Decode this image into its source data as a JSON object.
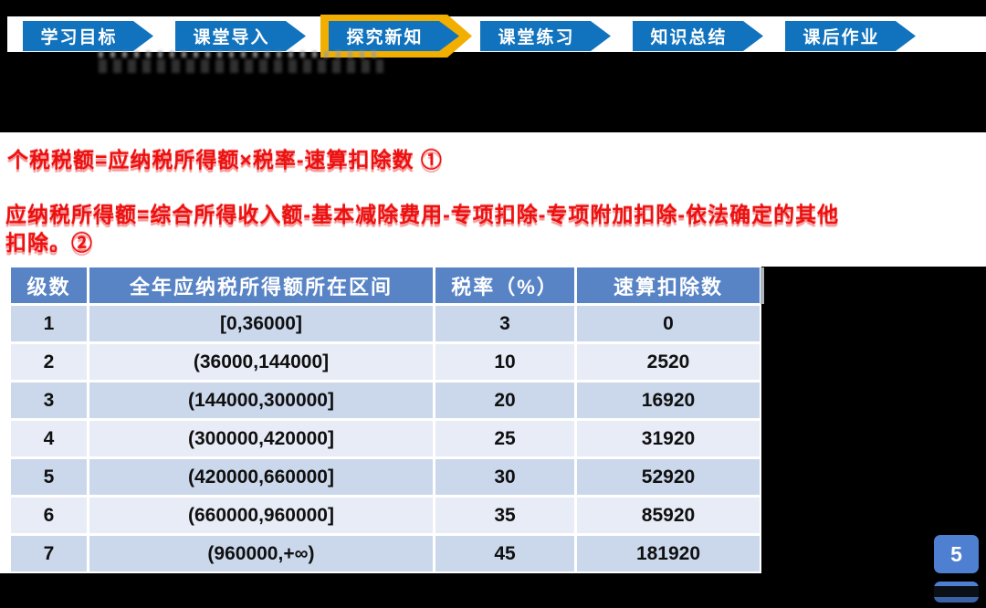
{
  "nav": {
    "tabs": [
      {
        "label": "学习目标",
        "active": false
      },
      {
        "label": "课堂导入",
        "active": false
      },
      {
        "label": "探究新知",
        "active": true
      },
      {
        "label": "课堂练习",
        "active": false
      },
      {
        "label": "知识总结",
        "active": false
      },
      {
        "label": "课后作业",
        "active": false
      }
    ],
    "tab_color": "#1173BE",
    "active_border_color": "#F2AF00"
  },
  "formulas": {
    "line1": "个税税额=应纳税所得额×税率-速算扣除数 ①",
    "line2a": "应纳税所得额=综合所得收入额-基本减除费用-专项扣除-专项附加扣除-依法确定的其他",
    "line2b": "扣除。②",
    "text_color": "#EC1111"
  },
  "table": {
    "headers": [
      "级数",
      "全年应纳税所得额所在区间",
      "税率（%）",
      "速算扣除数"
    ],
    "rows": [
      [
        "1",
        "[0,36000]",
        "3",
        "0"
      ],
      [
        "2",
        "(36000,144000]",
        "10",
        "2520"
      ],
      [
        "3",
        "(144000,300000]",
        "20",
        "16920"
      ],
      [
        "4",
        "(300000,420000]",
        "25",
        "31920"
      ],
      [
        "5",
        "(420000,660000]",
        "30",
        "52920"
      ],
      [
        "6",
        "(660000,960000]",
        "35",
        "85920"
      ],
      [
        "7",
        "(960000,+∞)",
        "45",
        "181920"
      ]
    ],
    "header_bg": "#5884C6",
    "row_odd_bg": "#CBD8EC",
    "row_even_bg": "#E8ECF6"
  },
  "page": {
    "number": "5",
    "badge_bg": "#4E7FD0"
  }
}
